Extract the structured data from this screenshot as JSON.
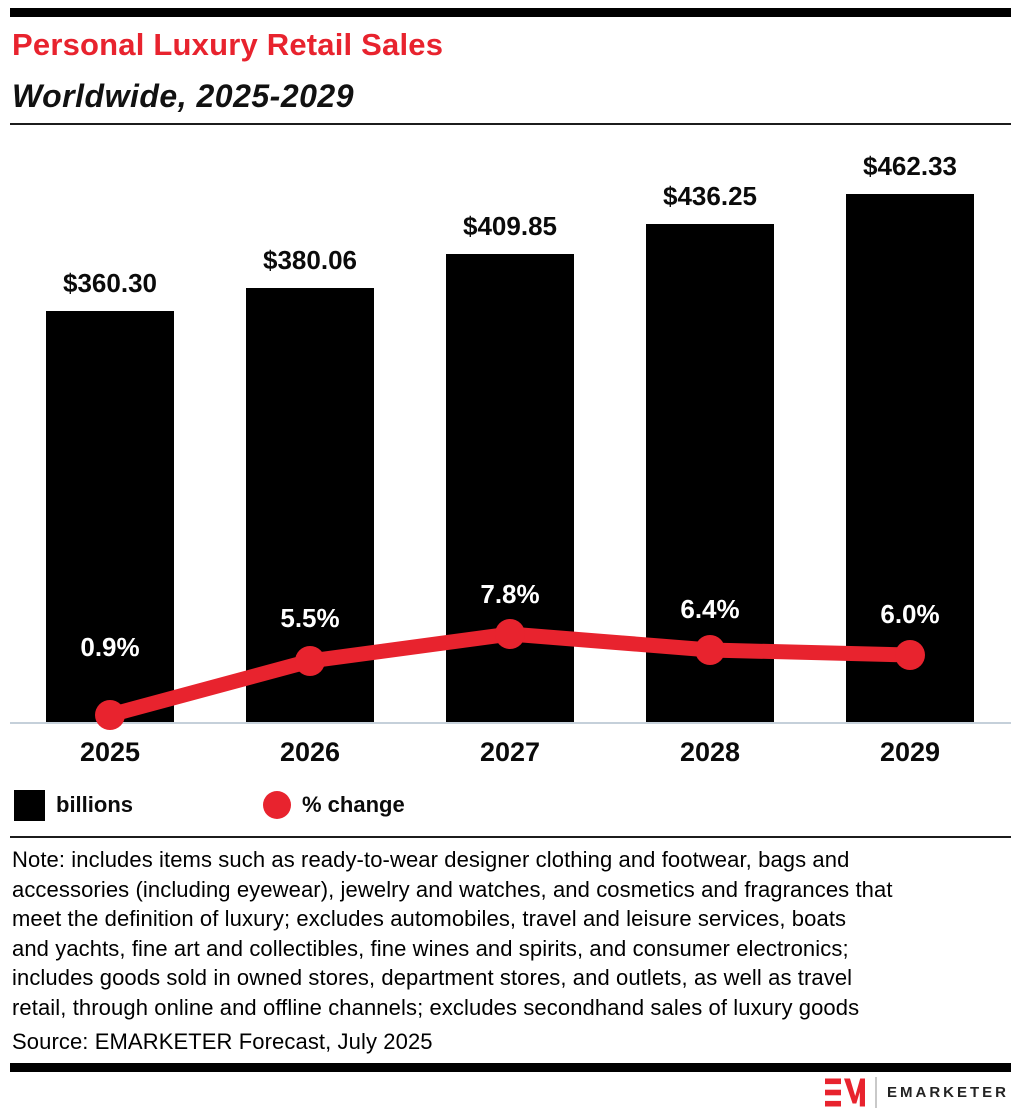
{
  "header": {
    "title": "Personal Luxury Retail Sales",
    "subtitle": "Worldwide, 2025-2029"
  },
  "chart_data": {
    "type": "bar",
    "combo": "bar-with-line-overlay",
    "title": "Personal Luxury Retail Sales",
    "subtitle": "Worldwide, 2025-2029",
    "categories": [
      "2025",
      "2026",
      "2027",
      "2028",
      "2029"
    ],
    "series": [
      {
        "name": "billions",
        "chart_type": "bar",
        "values": [
          360.3,
          380.06,
          409.85,
          436.25,
          462.33
        ],
        "data_labels": [
          "$360.30",
          "$380.06",
          "$409.85",
          "$436.25",
          "$462.33"
        ],
        "color": "#000000"
      },
      {
        "name": "% change",
        "chart_type": "line",
        "values": [
          0.9,
          5.5,
          7.8,
          6.4,
          6.0
        ],
        "data_labels": [
          "0.9%",
          "5.5%",
          "7.8%",
          "6.4%",
          "6.0%"
        ],
        "color": "#e8232e"
      }
    ],
    "xlabel": "",
    "ylabel": "",
    "ylim": [
      0,
      500
    ],
    "grid": false,
    "legend_position": "bottom-left"
  },
  "legend": {
    "items": [
      {
        "label": "billions",
        "swatch": "square-icon",
        "color": "#000000"
      },
      {
        "label": "% change",
        "swatch": "circle-icon",
        "color": "#e8232e"
      }
    ]
  },
  "note_lines": [
    "Note: includes items such as ready-to-wear designer clothing and footwear, bags and",
    "accessories (including eyewear), jewelry and watches, and cosmetics and fragrances that",
    "meet the definition of luxury; excludes automobiles, travel and leisure services, boats",
    "and yachts, fine art and collectibles, fine wines and spirits, and consumer electronics;",
    "includes goods sold in owned stores, department stores, and outlets, as well as travel",
    "retail, through online and offline channels; excludes secondhand sales of luxury goods"
  ],
  "source": "Source: EMARKETER Forecast, July 2025",
  "footer": {
    "brand": "EMARKETER"
  },
  "colors": {
    "accent_red": "#e8232e",
    "bar_black": "#000000",
    "axis_line": "#c5d0da"
  }
}
